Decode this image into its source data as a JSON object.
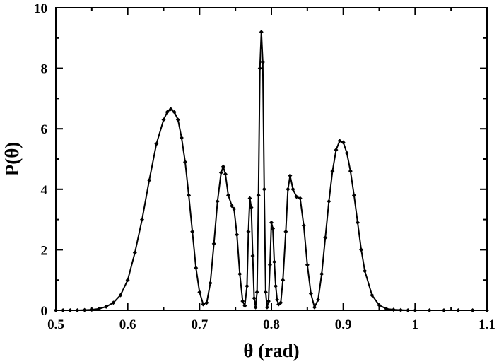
{
  "chart_data": {
    "type": "line",
    "title": "",
    "xlabel": "θ (rad)",
    "ylabel": "P(θ)",
    "xlim": [
      0.5,
      1.1
    ],
    "ylim": [
      0,
      10
    ],
    "x_ticks": [
      "0.5",
      "0.6",
      "0.7",
      "0.8",
      "0.9",
      "1",
      "1.1"
    ],
    "y_ticks": [
      "0",
      "2",
      "4",
      "6",
      "8",
      "10"
    ],
    "grid": false,
    "legend": "none",
    "marker": "diamond",
    "line_color": "#000000",
    "series": [
      {
        "x": [
          0.5,
          0.51,
          0.52,
          0.53,
          0.54,
          0.55,
          0.56,
          0.57,
          0.58,
          0.59,
          0.6,
          0.61,
          0.62,
          0.63,
          0.64,
          0.65,
          0.655,
          0.66,
          0.665,
          0.67,
          0.675,
          0.68,
          0.685,
          0.69,
          0.695,
          0.7,
          0.705,
          0.71,
          0.715,
          0.72,
          0.725,
          0.73,
          0.733,
          0.736,
          0.74,
          0.745,
          0.748,
          0.752,
          0.756,
          0.76,
          0.763,
          0.766,
          0.768,
          0.77,
          0.772,
          0.774,
          0.776,
          0.778,
          0.78,
          0.782,
          0.784,
          0.786,
          0.788,
          0.79,
          0.792,
          0.794,
          0.796,
          0.798,
          0.8,
          0.802,
          0.804,
          0.806,
          0.808,
          0.81,
          0.813,
          0.816,
          0.82,
          0.823,
          0.826,
          0.83,
          0.835,
          0.84,
          0.845,
          0.85,
          0.855,
          0.86,
          0.865,
          0.87,
          0.875,
          0.88,
          0.885,
          0.89,
          0.895,
          0.9,
          0.905,
          0.91,
          0.915,
          0.92,
          0.925,
          0.93,
          0.94,
          0.95,
          0.96,
          0.97,
          0.98,
          0.99,
          1.0,
          1.02,
          1.04,
          1.06,
          1.08,
          1.1
        ],
        "y": [
          0.0,
          0.0,
          0.0,
          0.0,
          0.01,
          0.02,
          0.05,
          0.12,
          0.25,
          0.5,
          1.0,
          1.9,
          3.0,
          4.3,
          5.5,
          6.3,
          6.55,
          6.65,
          6.55,
          6.3,
          5.7,
          4.9,
          3.8,
          2.6,
          1.4,
          0.6,
          0.2,
          0.25,
          0.9,
          2.2,
          3.6,
          4.55,
          4.75,
          4.5,
          3.8,
          3.45,
          3.35,
          2.5,
          1.2,
          0.3,
          0.15,
          0.8,
          2.6,
          3.7,
          3.4,
          1.8,
          0.4,
          0.1,
          0.6,
          3.8,
          8.0,
          9.2,
          8.2,
          4.0,
          0.6,
          0.1,
          0.3,
          1.5,
          2.9,
          2.7,
          1.6,
          0.8,
          0.35,
          0.2,
          0.25,
          1.0,
          2.6,
          4.0,
          4.45,
          4.0,
          3.75,
          3.7,
          2.8,
          1.5,
          0.55,
          0.1,
          0.35,
          1.2,
          2.4,
          3.6,
          4.6,
          5.3,
          5.6,
          5.55,
          5.2,
          4.6,
          3.8,
          2.9,
          2.0,
          1.3,
          0.5,
          0.17,
          0.05,
          0.02,
          0.01,
          0.0,
          0.0,
          0.0,
          0.0,
          0.0,
          0.0,
          0.0
        ]
      }
    ]
  }
}
